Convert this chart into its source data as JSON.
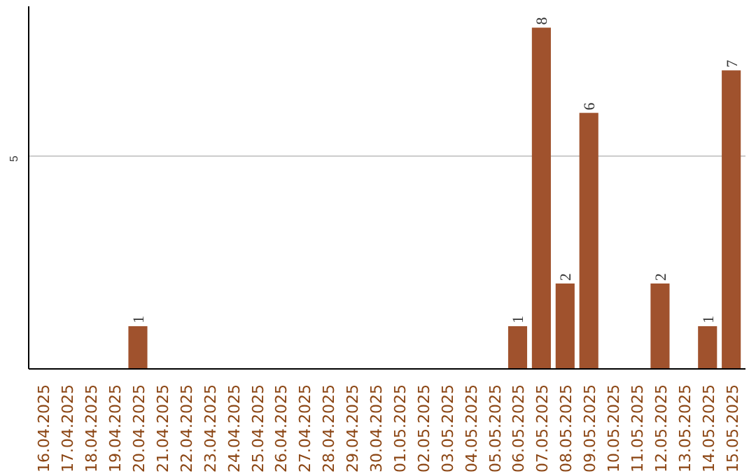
{
  "chart_data": {
    "type": "bar",
    "categories": [
      "16.04.2025",
      "17.04.2025",
      "18.04.2025",
      "19.04.2025",
      "20.04.2025",
      "21.04.2025",
      "22.04.2025",
      "23.04.2025",
      "24.04.2025",
      "25.04.2025",
      "26.04.2025",
      "27.04.2025",
      "28.04.2025",
      "29.04.2025",
      "30.04.2025",
      "01.05.2025",
      "02.05.2025",
      "03.05.2025",
      "04.05.2025",
      "05.05.2025",
      "06.05.2025",
      "07.05.2025",
      "08.05.2025",
      "09.05.2025",
      "10.05.2025",
      "11.05.2025",
      "12.05.2025",
      "13.05.2025",
      "14.05.2025",
      "15.05.2025"
    ],
    "values": [
      0,
      0,
      0,
      0,
      1,
      0,
      0,
      0,
      0,
      0,
      0,
      0,
      0,
      0,
      0,
      0,
      0,
      0,
      0,
      0,
      1,
      8,
      2,
      6,
      0,
      0,
      2,
      0,
      1,
      7
    ],
    "value_labels": [
      null,
      null,
      null,
      null,
      "1",
      null,
      null,
      null,
      null,
      null,
      null,
      null,
      null,
      null,
      null,
      null,
      null,
      null,
      null,
      null,
      "1",
      "8",
      "2",
      "6",
      null,
      null,
      "2",
      null,
      "1",
      "7"
    ],
    "color": "#a0522d",
    "ylim": [
      0,
      8.5
    ],
    "yticks": [
      5
    ],
    "grid": "y"
  }
}
